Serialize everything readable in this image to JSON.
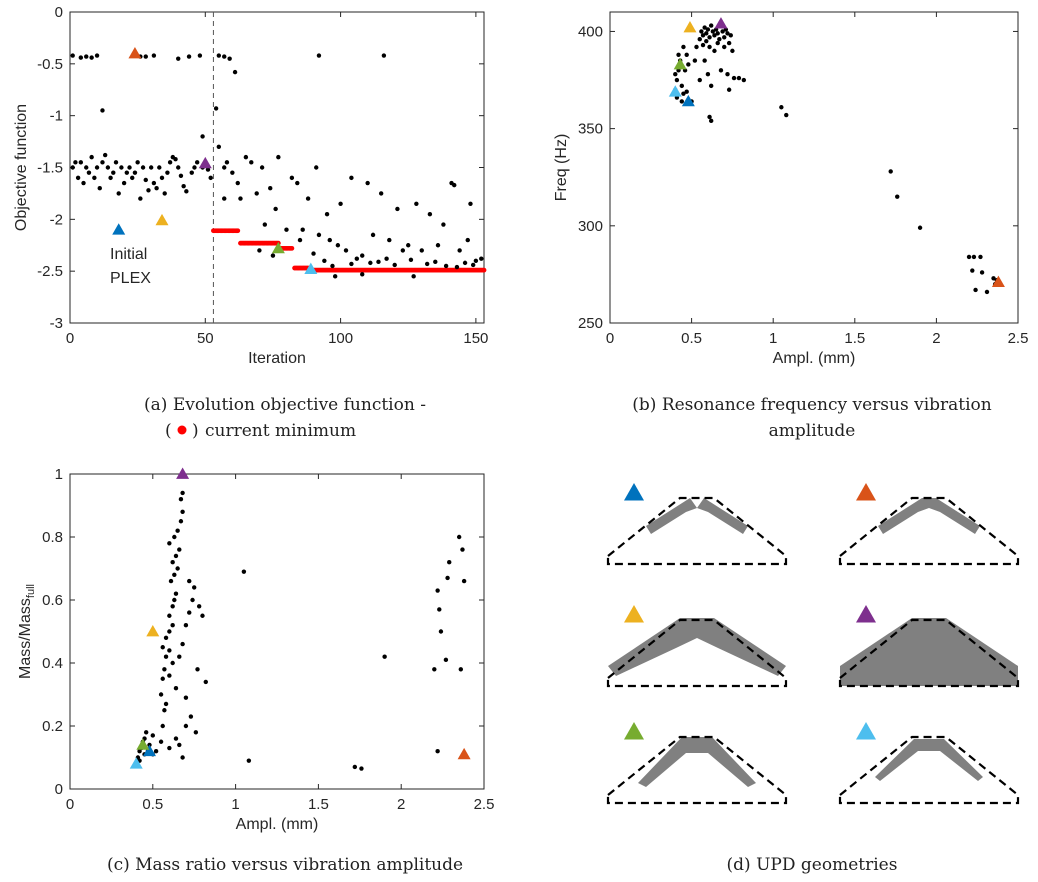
{
  "chart_data": [
    {
      "type": "scatter",
      "id": "a",
      "caption_line1": "(a) Evolution objective function -",
      "caption_line2": "current minimum",
      "xlabel": "Iteration",
      "ylabel": "Objective function",
      "xlim": [
        0,
        153
      ],
      "ylim": [
        -3,
        0
      ],
      "xticks": [
        "0",
        "50",
        "100",
        "150"
      ],
      "yticks": [
        "0",
        "-0.5",
        "-1",
        "-1.5",
        "-2",
        "-2.5",
        "-3"
      ],
      "annotation": [
        "Initial",
        "PLEX"
      ],
      "vline_x": 53,
      "points": [
        [
          1,
          -0.42
        ],
        [
          4,
          -0.44
        ],
        [
          6,
          -0.43
        ],
        [
          8,
          -0.44
        ],
        [
          10,
          -0.42
        ],
        [
          26,
          -0.43
        ],
        [
          28,
          -0.43
        ],
        [
          31,
          -0.42
        ],
        [
          40,
          -0.45
        ],
        [
          44,
          -0.43
        ],
        [
          48,
          -0.42
        ],
        [
          55,
          -0.42
        ],
        [
          57,
          -0.43
        ],
        [
          59,
          -0.45
        ],
        [
          61,
          -0.58
        ],
        [
          92,
          -0.42
        ],
        [
          116,
          -0.42
        ],
        [
          12,
          -0.95
        ],
        [
          54,
          -0.93
        ],
        [
          49,
          -1.2
        ],
        [
          1,
          -1.5
        ],
        [
          2,
          -1.45
        ],
        [
          3,
          -1.6
        ],
        [
          4,
          -1.45
        ],
        [
          5,
          -1.65
        ],
        [
          6,
          -1.5
        ],
        [
          7,
          -1.55
        ],
        [
          8,
          -1.4
        ],
        [
          9,
          -1.6
        ],
        [
          10,
          -1.5
        ],
        [
          11,
          -1.7
        ],
        [
          12,
          -1.45
        ],
        [
          13,
          -1.38
        ],
        [
          14,
          -1.5
        ],
        [
          15,
          -1.6
        ],
        [
          16,
          -1.55
        ],
        [
          17,
          -1.45
        ],
        [
          18,
          -1.75
        ],
        [
          19,
          -1.5
        ],
        [
          20,
          -1.65
        ],
        [
          21,
          -1.55
        ],
        [
          22,
          -1.5
        ],
        [
          23,
          -1.6
        ],
        [
          24,
          -1.55
        ],
        [
          25,
          -1.45
        ],
        [
          26,
          -1.8
        ],
        [
          27,
          -1.5
        ],
        [
          28,
          -1.62
        ],
        [
          29,
          -1.72
        ],
        [
          30,
          -1.5
        ],
        [
          31,
          -1.65
        ],
        [
          32,
          -1.7
        ],
        [
          33,
          -1.5
        ],
        [
          34,
          -1.6
        ],
        [
          35,
          -1.75
        ],
        [
          36,
          -1.55
        ],
        [
          37,
          -1.45
        ],
        [
          38,
          -1.4
        ],
        [
          39,
          -1.42
        ],
        [
          40,
          -1.5
        ],
        [
          41,
          -1.58
        ],
        [
          42,
          -1.68
        ],
        [
          43,
          -1.73
        ],
        [
          45,
          -1.55
        ],
        [
          46,
          -1.5
        ],
        [
          47,
          -1.45
        ],
        [
          49,
          -1.5
        ],
        [
          51,
          -1.52
        ],
        [
          52,
          -1.6
        ],
        [
          55,
          -1.3
        ],
        [
          57,
          -1.5
        ],
        [
          58,
          -1.45
        ],
        [
          60,
          -1.55
        ],
        [
          62,
          -1.65
        ],
        [
          65,
          -1.4
        ],
        [
          67,
          -1.45
        ],
        [
          71,
          -1.5
        ],
        [
          74,
          -1.7
        ],
        [
          77,
          -1.4
        ],
        [
          82,
          -1.6
        ],
        [
          88,
          -1.8
        ],
        [
          91,
          -1.5
        ],
        [
          95,
          -1.95
        ],
        [
          100,
          -1.85
        ],
        [
          104,
          -1.6
        ],
        [
          110,
          -1.65
        ],
        [
          115,
          -1.75
        ],
        [
          121,
          -1.9
        ],
        [
          128,
          -1.85
        ],
        [
          133,
          -1.95
        ],
        [
          141,
          -1.65
        ],
        [
          142,
          -1.67
        ],
        [
          148,
          -1.85
        ],
        [
          57,
          -1.8
        ],
        [
          63,
          -1.8
        ],
        [
          69,
          -1.75
        ],
        [
          72,
          -2.05
        ],
        [
          76,
          -1.9
        ],
        [
          80,
          -2.1
        ],
        [
          84,
          -1.65
        ],
        [
          86,
          -2.1
        ],
        [
          92,
          -2.15
        ],
        [
          96,
          -2.2
        ],
        [
          99,
          -2.25
        ],
        [
          102,
          -2.3
        ],
        [
          108,
          -2.35
        ],
        [
          112,
          -2.15
        ],
        [
          118,
          -2.2
        ],
        [
          123,
          -2.3
        ],
        [
          125,
          -2.25
        ],
        [
          130,
          -2.3
        ],
        [
          136,
          -2.25
        ],
        [
          138,
          -2.05
        ],
        [
          144,
          -2.3
        ],
        [
          147,
          -2.2
        ],
        [
          150,
          -2.4
        ],
        [
          85,
          -2.2
        ],
        [
          90,
          -2.33
        ],
        [
          94,
          -2.4
        ],
        [
          97,
          -2.45
        ],
        [
          104,
          -2.43
        ],
        [
          106,
          -2.38
        ],
        [
          111,
          -2.42
        ],
        [
          114,
          -2.41
        ],
        [
          117,
          -2.38
        ],
        [
          120,
          -2.44
        ],
        [
          126,
          -2.39
        ],
        [
          132,
          -2.43
        ],
        [
          135,
          -2.41
        ],
        [
          139,
          -2.45
        ],
        [
          143,
          -2.46
        ],
        [
          146,
          -2.42
        ],
        [
          149,
          -2.44
        ],
        [
          152,
          -2.38
        ],
        [
          70,
          -2.3
        ],
        [
          75,
          -2.35
        ],
        [
          98,
          -2.55
        ],
        [
          108,
          -2.53
        ],
        [
          127,
          -2.55
        ]
      ],
      "current_minimum": [
        {
          "x_from": 53,
          "x_to": 62,
          "y": -2.11
        },
        {
          "x_from": 63,
          "x_to": 77,
          "y": -2.23
        },
        {
          "x_from": 78,
          "x_to": 82,
          "y": -2.28
        },
        {
          "x_from": 83,
          "x_to": 88,
          "y": -2.47
        },
        {
          "x_from": 89,
          "x_to": 153,
          "y": -2.49
        }
      ],
      "markers": [
        {
          "name": "blue",
          "x": 18,
          "y": -2.1
        },
        {
          "name": "orange",
          "x": 24,
          "y": -0.4
        },
        {
          "name": "yellow",
          "x": 34,
          "y": -2.01
        },
        {
          "name": "purple",
          "x": 50,
          "y": -1.46
        },
        {
          "name": "green",
          "x": 77,
          "y": -2.28
        },
        {
          "name": "cyan",
          "x": 89,
          "y": -2.48
        }
      ]
    },
    {
      "type": "scatter",
      "id": "b",
      "caption_line1": "(b) Resonance frequency versus vibration",
      "caption_line2": "amplitude",
      "xlabel": "Ampl. (mm)",
      "ylabel": "Freq (Hz)",
      "xlim": [
        0,
        2.5
      ],
      "ylim": [
        250,
        410
      ],
      "xticks": [
        "0",
        "0.5",
        "1",
        "1.5",
        "2",
        "2.5"
      ],
      "yticks": [
        "250",
        "300",
        "350",
        "400"
      ],
      "points": [
        [
          0.4,
          370
        ],
        [
          0.41,
          375
        ],
        [
          0.42,
          380
        ],
        [
          0.43,
          385
        ],
        [
          0.4,
          378
        ],
        [
          0.41,
          366
        ],
        [
          0.44,
          372
        ],
        [
          0.45,
          368
        ],
        [
          0.46,
          380
        ],
        [
          0.47,
          388
        ],
        [
          0.45,
          392
        ],
        [
          0.48,
          383
        ],
        [
          0.42,
          388
        ],
        [
          0.44,
          364
        ],
        [
          0.5,
          364
        ],
        [
          0.47,
          369
        ],
        [
          0.52,
          385
        ],
        [
          0.53,
          392
        ],
        [
          0.55,
          396
        ],
        [
          0.56,
          400
        ],
        [
          0.57,
          398
        ],
        [
          0.58,
          402
        ],
        [
          0.59,
          399
        ],
        [
          0.6,
          401
        ],
        [
          0.61,
          397
        ],
        [
          0.62,
          403
        ],
        [
          0.63,
          400
        ],
        [
          0.64,
          398
        ],
        [
          0.65,
          401
        ],
        [
          0.66,
          399
        ],
        [
          0.67,
          396
        ],
        [
          0.68,
          403
        ],
        [
          0.69,
          400
        ],
        [
          0.7,
          397
        ],
        [
          0.71,
          401
        ],
        [
          0.72,
          399
        ],
        [
          0.73,
          394
        ],
        [
          0.74,
          398
        ],
        [
          0.75,
          390
        ],
        [
          0.58,
          385
        ],
        [
          0.6,
          378
        ],
        [
          0.62,
          372
        ],
        [
          0.61,
          356
        ],
        [
          0.62,
          354
        ],
        [
          0.55,
          375
        ],
        [
          0.64,
          390
        ],
        [
          0.68,
          380
        ],
        [
          0.72,
          378
        ],
        [
          0.73,
          370
        ],
        [
          0.76,
          376
        ],
        [
          0.79,
          376
        ],
        [
          0.82,
          375
        ],
        [
          0.57,
          393
        ],
        [
          0.59,
          395
        ],
        [
          0.61,
          392
        ],
        [
          0.66,
          394
        ],
        [
          0.7,
          392
        ],
        [
          1.05,
          361
        ],
        [
          1.08,
          357
        ],
        [
          1.72,
          328
        ],
        [
          1.76,
          315
        ],
        [
          1.9,
          299
        ],
        [
          2.2,
          284
        ],
        [
          2.23,
          284
        ],
        [
          2.27,
          284
        ],
        [
          2.22,
          277
        ],
        [
          2.28,
          276
        ],
        [
          2.35,
          273
        ],
        [
          2.37,
          272
        ],
        [
          2.24,
          267
        ],
        [
          2.31,
          266
        ],
        [
          2.36,
          270
        ]
      ],
      "markers": [
        {
          "name": "blue",
          "x": 0.48,
          "y": 364
        },
        {
          "name": "orange",
          "x": 2.38,
          "y": 271
        },
        {
          "name": "yellow",
          "x": 0.49,
          "y": 402
        },
        {
          "name": "purple",
          "x": 0.68,
          "y": 404
        },
        {
          "name": "green",
          "x": 0.43,
          "y": 383
        },
        {
          "name": "cyan",
          "x": 0.4,
          "y": 369
        }
      ]
    },
    {
      "type": "scatter",
      "id": "c",
      "caption_line1": "(c) Mass ratio versus vibration amplitude",
      "xlabel": "Ampl. (mm)",
      "ylabel_main": "Mass/Mass",
      "ylabel_sub": "full",
      "xlim": [
        0,
        2.5
      ],
      "ylim": [
        0,
        1
      ],
      "xticks": [
        "0",
        "0.5",
        "1",
        "1.5",
        "2",
        "2.5"
      ],
      "yticks": [
        "0",
        "0.2",
        "0.4",
        "0.6",
        "0.8",
        "1"
      ],
      "points": [
        [
          0.41,
          0.1
        ],
        [
          0.42,
          0.12
        ],
        [
          0.43,
          0.13
        ],
        [
          0.44,
          0.15
        ],
        [
          0.45,
          0.16
        ],
        [
          0.46,
          0.18
        ],
        [
          0.47,
          0.12
        ],
        [
          0.48,
          0.14
        ],
        [
          0.5,
          0.17
        ],
        [
          0.4,
          0.08
        ],
        [
          0.42,
          0.09
        ],
        [
          0.45,
          0.11
        ],
        [
          0.5,
          0.11
        ],
        [
          0.52,
          0.12
        ],
        [
          0.55,
          0.15
        ],
        [
          0.56,
          0.2
        ],
        [
          0.57,
          0.25
        ],
        [
          0.55,
          0.3
        ],
        [
          0.56,
          0.35
        ],
        [
          0.57,
          0.38
        ],
        [
          0.58,
          0.42
        ],
        [
          0.56,
          0.45
        ],
        [
          0.58,
          0.48
        ],
        [
          0.6,
          0.5
        ],
        [
          0.62,
          0.52
        ],
        [
          0.6,
          0.55
        ],
        [
          0.62,
          0.58
        ],
        [
          0.63,
          0.6
        ],
        [
          0.64,
          0.62
        ],
        [
          0.61,
          0.66
        ],
        [
          0.63,
          0.68
        ],
        [
          0.65,
          0.7
        ],
        [
          0.62,
          0.72
        ],
        [
          0.64,
          0.74
        ],
        [
          0.66,
          0.76
        ],
        [
          0.6,
          0.78
        ],
        [
          0.63,
          0.8
        ],
        [
          0.65,
          0.82
        ],
        [
          0.67,
          0.85
        ],
        [
          0.68,
          0.88
        ],
        [
          0.67,
          0.92
        ],
        [
          0.68,
          0.94
        ],
        [
          0.6,
          0.44
        ],
        [
          0.62,
          0.4
        ],
        [
          0.6,
          0.36
        ],
        [
          0.64,
          0.32
        ],
        [
          0.66,
          0.42
        ],
        [
          0.68,
          0.46
        ],
        [
          0.7,
          0.52
        ],
        [
          0.72,
          0.56
        ],
        [
          0.74,
          0.6
        ],
        [
          0.72,
          0.66
        ],
        [
          0.75,
          0.64
        ],
        [
          0.78,
          0.58
        ],
        [
          0.8,
          0.55
        ],
        [
          0.7,
          0.2
        ],
        [
          0.76,
          0.18
        ],
        [
          0.82,
          0.34
        ],
        [
          0.66,
          0.14
        ],
        [
          0.64,
          0.16
        ],
        [
          0.6,
          0.13
        ],
        [
          0.68,
          0.1
        ],
        [
          0.7,
          0.29
        ],
        [
          0.73,
          0.23
        ],
        [
          0.77,
          0.38
        ],
        [
          0.58,
          0.27
        ],
        [
          1.05,
          0.69
        ],
        [
          1.08,
          0.09
        ],
        [
          1.72,
          0.07
        ],
        [
          1.76,
          0.065
        ],
        [
          1.9,
          0.42
        ],
        [
          2.2,
          0.38
        ],
        [
          2.22,
          0.63
        ],
        [
          2.23,
          0.57
        ],
        [
          2.24,
          0.5
        ],
        [
          2.22,
          0.12
        ],
        [
          2.27,
          0.41
        ],
        [
          2.28,
          0.67
        ],
        [
          2.29,
          0.72
        ],
        [
          2.35,
          0.8
        ],
        [
          2.37,
          0.76
        ],
        [
          2.36,
          0.38
        ],
        [
          2.38,
          0.66
        ]
      ],
      "markers": [
        {
          "name": "blue",
          "x": 0.48,
          "y": 0.12
        },
        {
          "name": "orange",
          "x": 2.38,
          "y": 0.11
        },
        {
          "name": "yellow",
          "x": 0.5,
          "y": 0.5
        },
        {
          "name": "purple",
          "x": 0.68,
          "y": 1.0
        },
        {
          "name": "green",
          "x": 0.44,
          "y": 0.14
        },
        {
          "name": "cyan",
          "x": 0.4,
          "y": 0.08
        }
      ]
    }
  ],
  "geometries": {
    "caption": "(d) UPD geometries",
    "items": [
      {
        "marker": "blue",
        "shape": "split"
      },
      {
        "marker": "orange",
        "shape": "thin"
      },
      {
        "marker": "yellow",
        "shape": "wide"
      },
      {
        "marker": "purple",
        "shape": "full"
      },
      {
        "marker": "green",
        "shape": "arch"
      },
      {
        "marker": "cyan",
        "shape": "thin-arch"
      }
    ]
  },
  "colors": {
    "blue": "#0072BD",
    "orange": "#D95319",
    "yellow": "#EDB120",
    "purple": "#7E2F8E",
    "green": "#77AC30",
    "cyan": "#4DBEEE",
    "current_minimum": "#FF0000",
    "points": "#000000",
    "geometry_fill": "#808080"
  }
}
